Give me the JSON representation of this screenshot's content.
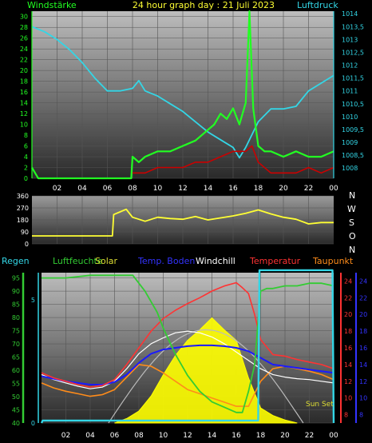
{
  "header": {
    "left_label": "Windstärke",
    "title": "24 hour graph day : 21 Juli 2023",
    "right_label": "Luftdruck"
  },
  "legend": {
    "rain": "Regen",
    "humidity": "Luftfeuchte",
    "solar": "Solar",
    "soil_temp": "Temp. Boden",
    "windchill": "Windchill",
    "temperature": "Temperatur",
    "dewpoint": "Taupunkt"
  },
  "direction_letters": [
    "N",
    "W",
    "S",
    "O",
    "N"
  ],
  "sunset_label": "Sun Set",
  "colors": {
    "wind": "#22ff22",
    "gust": "#cc0000",
    "pressure": "#33d6e6",
    "direction": "#ffff33",
    "humidity": "#33cc33",
    "solar": "#ffff00",
    "soil_temp": "#1a1aff",
    "windchill": "#ffffff",
    "temperature": "#ff3333",
    "dewpoint": "#ff8c1a",
    "rain": "#33d6e6",
    "sunline": "#bbbbbb"
  },
  "chart_data": [
    {
      "type": "line",
      "x_ticks": [
        "02",
        "04",
        "06",
        "08",
        "10",
        "12",
        "14",
        "16",
        "18",
        "20",
        "22",
        "00"
      ],
      "y_left_ticks": [
        0,
        2,
        4,
        6,
        8,
        10,
        12,
        14,
        16,
        18,
        20,
        22,
        24,
        26,
        28,
        30
      ],
      "y_left_range": [
        0,
        31
      ],
      "y_right_ticks": [
        "1008",
        "1008,5",
        "1009",
        "1009,5",
        "1010",
        "1010,5",
        "1011",
        "1011,5",
        "1012",
        "1012,5",
        "1013",
        "1013,5",
        "1014"
      ],
      "y_right_range": [
        1007.6,
        1014.1
      ],
      "series": [
        {
          "key": "pressure",
          "x": [
            0,
            1,
            2,
            3,
            4,
            5,
            6,
            7,
            8,
            8.5,
            9,
            10,
            11,
            12,
            13,
            14,
            15,
            16,
            16.5,
            17,
            18,
            19,
            20,
            21,
            22,
            23,
            24
          ],
          "y": [
            1013.5,
            1013.3,
            1013.0,
            1012.6,
            1012.1,
            1011.5,
            1011.0,
            1011.0,
            1011.1,
            1011.4,
            1011.0,
            1010.8,
            1010.5,
            1010.2,
            1009.8,
            1009.4,
            1009.1,
            1008.8,
            1008.4,
            1008.8,
            1009.8,
            1010.3,
            1010.3,
            1010.4,
            1011.0,
            1011.3,
            1011.6
          ]
        },
        {
          "key": "wind",
          "x": [
            0,
            0.5,
            7.9,
            8,
            8.5,
            9,
            10,
            11,
            12,
            13,
            14,
            14.5,
            15,
            15.5,
            16,
            16.5,
            17,
            17.3,
            17.6,
            18,
            18.5,
            19,
            20,
            21,
            22,
            23,
            24
          ],
          "y": [
            2,
            0,
            0,
            4,
            3,
            4,
            5,
            5,
            6,
            7,
            9,
            10,
            12,
            11,
            13,
            10,
            14,
            31,
            13,
            6,
            5,
            5,
            4,
            5,
            4,
            4,
            5
          ]
        },
        {
          "key": "gust",
          "x": [
            8,
            9,
            10,
            11,
            12,
            13,
            14,
            15,
            16,
            17,
            17.5,
            18,
            19,
            20,
            21,
            22,
            23,
            24
          ],
          "y": [
            1,
            1,
            2,
            2,
            2,
            3,
            3,
            4,
            5,
            5,
            6,
            3,
            1,
            1,
            1,
            2,
            1,
            2
          ]
        }
      ]
    },
    {
      "type": "line",
      "x_ticks": [
        "02",
        "04",
        "06",
        "08",
        "10",
        "12",
        "14",
        "16",
        "18",
        "20",
        "22",
        "00"
      ],
      "y_ticks": [
        0,
        90,
        180,
        270,
        360
      ],
      "y_range": [
        0,
        360
      ],
      "series": [
        {
          "key": "direction",
          "x": [
            0,
            6.4,
            6.5,
            7,
            7.5,
            8,
            9,
            10,
            11,
            12,
            13,
            14,
            15,
            16,
            17,
            18,
            19,
            20,
            21,
            22,
            23,
            24
          ],
          "y": [
            60,
            60,
            220,
            240,
            260,
            200,
            170,
            200,
            190,
            185,
            205,
            180,
            195,
            210,
            230,
            255,
            225,
            200,
            185,
            150,
            160,
            160
          ]
        }
      ]
    },
    {
      "type": "line",
      "x_ticks": [
        "02",
        "04",
        "06",
        "08",
        "10",
        "12",
        "14",
        "16",
        "18",
        "20",
        "22",
        "00"
      ],
      "y_left_ticks": [
        40,
        45,
        50,
        55,
        60,
        65,
        70,
        75,
        80,
        85,
        90,
        95
      ],
      "y_left_range": [
        40,
        97
      ],
      "rain_ticks": [
        0,
        5
      ],
      "rain_range": [
        0,
        6.1
      ],
      "temp_ticks": [
        8,
        10,
        12,
        14,
        16,
        18,
        20,
        22,
        24
      ],
      "temp_range": [
        7,
        25
      ],
      "soil_ticks": [
        8,
        10,
        12,
        14,
        16,
        18,
        20,
        22,
        24
      ],
      "soil_range": [
        7,
        25
      ],
      "series": [
        {
          "key": "humidity",
          "x": [
            0,
            2,
            4,
            7.5,
            8.5,
            9.5,
            10,
            11,
            12,
            13,
            14,
            15,
            16,
            16.5,
            17,
            17.5,
            18,
            18.5,
            19,
            20,
            21,
            22,
            23,
            24
          ],
          "y": [
            95,
            95,
            96,
            96,
            90,
            82,
            76,
            66,
            58,
            52,
            48,
            46,
            44,
            44,
            52,
            62,
            90,
            91,
            91,
            92,
            92,
            93,
            93,
            92
          ]
        },
        {
          "key": "temperature",
          "x": [
            0,
            1,
            2,
            3,
            4,
            5,
            6,
            7,
            8,
            9,
            10,
            11,
            12,
            13,
            14,
            15,
            16,
            16.5,
            17,
            17.5,
            18,
            19,
            20,
            21,
            22,
            23,
            24
          ],
          "y": [
            13,
            12.4,
            12,
            11.6,
            11.3,
            11.5,
            12.2,
            14,
            16,
            18,
            19.5,
            20.5,
            21.3,
            22,
            22.8,
            23.4,
            23.8,
            23.2,
            22.5,
            20,
            17,
            15.2,
            15,
            14.6,
            14.3,
            14,
            13.5
          ]
        },
        {
          "key": "windchill",
          "x": [
            0,
            1,
            2,
            3,
            4,
            5,
            6,
            7,
            8,
            9,
            10,
            11,
            12,
            13,
            14,
            15,
            16,
            17,
            18,
            19,
            20,
            21,
            22,
            23,
            24
          ],
          "y": [
            12.8,
            12.2,
            11.8,
            11.4,
            11.1,
            11.3,
            12.0,
            13.5,
            15.3,
            16.5,
            17.2,
            17.8,
            18.0,
            17.8,
            17.3,
            16.5,
            15.5,
            14.5,
            13.5,
            12.8,
            12.5,
            12.3,
            12.2,
            12.0,
            11.8
          ]
        },
        {
          "key": "dewpoint",
          "x": [
            0,
            1,
            2,
            3,
            4,
            5,
            6,
            7,
            8,
            9,
            10,
            11,
            12,
            13,
            14,
            15,
            16,
            17,
            18,
            19,
            20,
            21,
            22,
            23,
            24
          ],
          "y": [
            11.8,
            11.2,
            10.8,
            10.5,
            10.2,
            10.4,
            11.0,
            12.5,
            14.0,
            13.8,
            13.0,
            12.0,
            11.0,
            10.5,
            10.0,
            9.5,
            9.0,
            9.0,
            12.0,
            13.5,
            13.8,
            13.5,
            13.2,
            12.8,
            12.2
          ]
        },
        {
          "key": "soil_temp",
          "x": [
            0,
            1,
            2,
            3,
            4,
            5,
            6,
            7,
            8,
            9,
            10,
            11,
            12,
            13,
            14,
            15,
            16,
            17,
            18,
            19,
            20,
            21,
            22,
            23,
            24
          ],
          "y": [
            12.6,
            12.3,
            12.0,
            11.8,
            11.6,
            11.6,
            11.9,
            12.8,
            14.2,
            15.3,
            15.8,
            16.0,
            16.2,
            16.3,
            16.3,
            16.2,
            16.0,
            15.6,
            14.8,
            14.0,
            13.8,
            13.6,
            13.4,
            13.2,
            13.0
          ]
        },
        {
          "key": "rain",
          "x": [
            0,
            0.1,
            0.2,
            17.8,
            17.9,
            18.0,
            23.9,
            24
          ],
          "y": [
            0,
            0.1,
            0.1,
            0.1,
            6.2,
            6.2,
            6.2,
            0
          ]
        },
        {
          "key": "solar",
          "x": [
            6,
            7,
            8,
            9,
            10,
            11,
            12,
            13,
            14,
            15,
            16,
            17,
            18,
            19,
            20,
            21
          ],
          "y": [
            0,
            0.03,
            0.08,
            0.18,
            0.32,
            0.45,
            0.55,
            0.62,
            0.7,
            0.62,
            0.55,
            0.3,
            0.1,
            0.05,
            0.02,
            0
          ]
        }
      ]
    }
  ]
}
